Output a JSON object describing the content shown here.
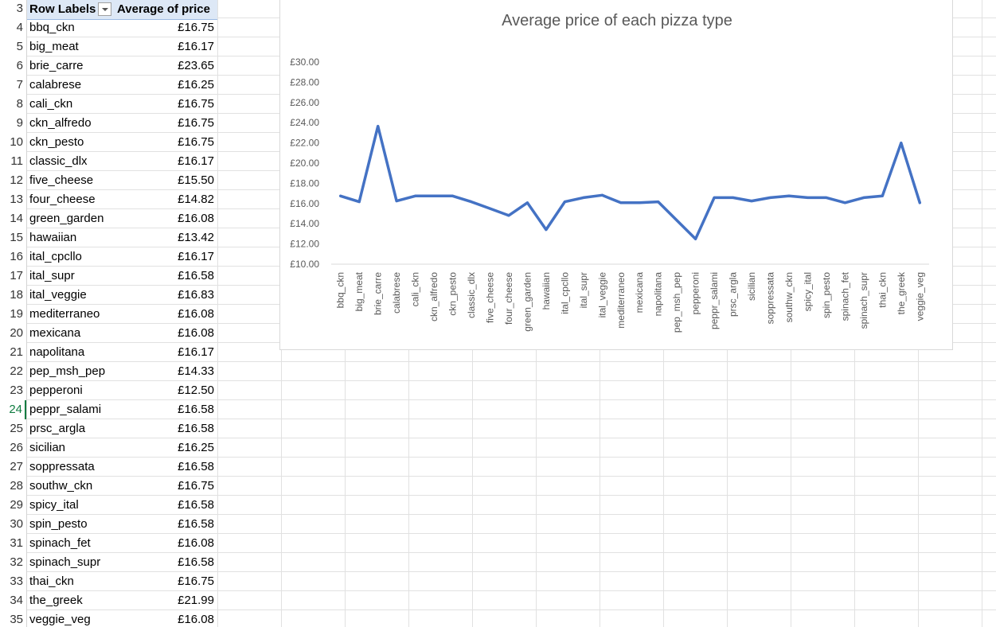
{
  "sheet": {
    "row_numbers": [
      "3",
      "4",
      "5",
      "6",
      "7",
      "8",
      "9",
      "10",
      "11",
      "12",
      "13",
      "14",
      "15",
      "16",
      "17",
      "18",
      "19",
      "20",
      "21",
      "22",
      "23",
      "24",
      "25",
      "26",
      "27",
      "28",
      "29",
      "30",
      "31",
      "32",
      "33",
      "34",
      "35"
    ],
    "active_row": "24"
  },
  "pivot": {
    "header_label": "Row Labels",
    "header_value": "Average of price",
    "rows": [
      {
        "label": "bbq_ckn",
        "value": "£16.75"
      },
      {
        "label": "big_meat",
        "value": "£16.17"
      },
      {
        "label": "brie_carre",
        "value": "£23.65"
      },
      {
        "label": "calabrese",
        "value": "£16.25"
      },
      {
        "label": "cali_ckn",
        "value": "£16.75"
      },
      {
        "label": "ckn_alfredo",
        "value": "£16.75"
      },
      {
        "label": "ckn_pesto",
        "value": "£16.75"
      },
      {
        "label": "classic_dlx",
        "value": "£16.17"
      },
      {
        "label": "five_cheese",
        "value": "£15.50"
      },
      {
        "label": "four_cheese",
        "value": "£14.82"
      },
      {
        "label": "green_garden",
        "value": "£16.08"
      },
      {
        "label": "hawaiian",
        "value": "£13.42"
      },
      {
        "label": "ital_cpcllo",
        "value": "£16.17"
      },
      {
        "label": "ital_supr",
        "value": "£16.58"
      },
      {
        "label": "ital_veggie",
        "value": "£16.83"
      },
      {
        "label": "mediterraneo",
        "value": "£16.08"
      },
      {
        "label": "mexicana",
        "value": "£16.08"
      },
      {
        "label": "napolitana",
        "value": "£16.17"
      },
      {
        "label": "pep_msh_pep",
        "value": "£14.33"
      },
      {
        "label": "pepperoni",
        "value": "£12.50"
      },
      {
        "label": "peppr_salami",
        "value": "£16.58"
      },
      {
        "label": "prsc_argla",
        "value": "£16.58"
      },
      {
        "label": "sicilian",
        "value": "£16.25"
      },
      {
        "label": "soppressata",
        "value": "£16.58"
      },
      {
        "label": "southw_ckn",
        "value": "£16.75"
      },
      {
        "label": "spicy_ital",
        "value": "£16.58"
      },
      {
        "label": "spin_pesto",
        "value": "£16.58"
      },
      {
        "label": "spinach_fet",
        "value": "£16.08"
      },
      {
        "label": "spinach_supr",
        "value": "£16.58"
      },
      {
        "label": "thai_ckn",
        "value": "£16.75"
      },
      {
        "label": "the_greek",
        "value": "£21.99"
      },
      {
        "label": "veggie_veg",
        "value": "£16.08"
      }
    ]
  },
  "colors": {
    "series_line": "#4472c4",
    "pivot_header_bg": "#dde8f6",
    "active_row": "#107c41"
  },
  "chart_data": {
    "type": "line",
    "title": "Average price of each pizza type",
    "xlabel": "",
    "ylabel": "",
    "categories": [
      "bbq_ckn",
      "big_meat",
      "brie_carre",
      "calabrese",
      "cali_ckn",
      "ckn_alfredo",
      "ckn_pesto",
      "classic_dlx",
      "five_cheese",
      "four_cheese",
      "green_garden",
      "hawaiian",
      "ital_cpcllo",
      "ital_supr",
      "ital_veggie",
      "mediterraneo",
      "mexicana",
      "napolitana",
      "pep_msh_pep",
      "pepperoni",
      "peppr_salami",
      "prsc_argla",
      "sicilian",
      "soppressata",
      "southw_ckn",
      "spicy_ital",
      "spin_pesto",
      "spinach_fet",
      "spinach_supr",
      "thai_ckn",
      "the_greek",
      "veggie_veg"
    ],
    "series": [
      {
        "values": [
          16.75,
          16.17,
          23.65,
          16.25,
          16.75,
          16.75,
          16.75,
          16.17,
          15.5,
          14.82,
          16.08,
          13.42,
          16.17,
          16.58,
          16.83,
          16.08,
          16.08,
          16.17,
          14.33,
          12.5,
          16.58,
          16.58,
          16.25,
          16.58,
          16.75,
          16.58,
          16.58,
          16.08,
          16.58,
          16.75,
          21.99,
          16.08
        ]
      }
    ],
    "ylim": [
      10,
      30
    ],
    "yticks": [
      "£10.00",
      "£12.00",
      "£14.00",
      "£16.00",
      "£18.00",
      "£20.00",
      "£22.00",
      "£24.00",
      "£26.00",
      "£28.00",
      "£30.00"
    ],
    "grid": false,
    "legend": "none"
  }
}
